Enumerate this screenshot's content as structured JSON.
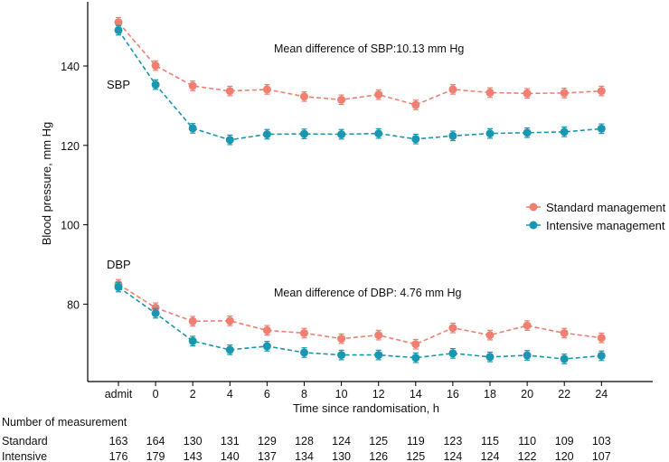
{
  "chart_data": {
    "type": "line",
    "xlabel": "Time since randomisation, h",
    "ylabel": "Blood pressure, mm Hg",
    "categories": [
      "admit",
      "0",
      "2",
      "4",
      "6",
      "8",
      "10",
      "12",
      "14",
      "16",
      "18",
      "20",
      "22",
      "24"
    ],
    "ylim": [
      60,
      155
    ],
    "yticks": [
      80,
      100,
      120,
      140
    ],
    "grid": false,
    "legend_position": "right",
    "series": [
      {
        "name": "Standard management",
        "group": "SBP",
        "color": "#F07F72",
        "values": [
          151.0,
          140.1,
          135.0,
          133.7,
          134.1,
          132.3,
          131.5,
          132.8,
          130.2,
          134.1,
          133.3,
          133.1,
          133.2,
          133.7
        ],
        "err": 1.2
      },
      {
        "name": "Intensive management",
        "group": "SBP",
        "color": "#1A97B0",
        "values": [
          149.0,
          135.3,
          124.3,
          121.4,
          122.8,
          122.9,
          122.8,
          123.0,
          121.6,
          122.4,
          123.0,
          123.2,
          123.4,
          124.2
        ],
        "err": 1.2
      },
      {
        "name": "Standard management",
        "group": "DBP",
        "color": "#F07F72",
        "values": [
          85.0,
          79.1,
          75.7,
          75.8,
          73.4,
          72.7,
          71.3,
          72.2,
          69.9,
          74.0,
          72.2,
          74.6,
          72.7,
          71.5
        ],
        "err": 1.2
      },
      {
        "name": "Intensive management",
        "group": "DBP",
        "color": "#1A97B0",
        "values": [
          84.3,
          77.7,
          70.7,
          68.5,
          69.4,
          67.8,
          67.2,
          67.2,
          66.5,
          67.6,
          66.7,
          67.1,
          66.2,
          67.0
        ],
        "err": 1.2
      }
    ],
    "legend": [
      {
        "label": "Standard management",
        "color": "#F07F72"
      },
      {
        "label": "Intensive management",
        "color": "#1A97B0"
      }
    ],
    "annotations": {
      "sbp_label": "SBP",
      "dbp_label": "DBP",
      "sbp_diff": "Mean difference of SBP:10.13 mm Hg",
      "dbp_diff": "Mean difference of DBP: 4.76 mm Hg"
    },
    "table": {
      "title": "Number of measurement",
      "rows": [
        {
          "label": "Standard",
          "values": [
            "163",
            "164",
            "130",
            "131",
            "129",
            "128",
            "124",
            "125",
            "119",
            "123",
            "115",
            "110",
            "109",
            "103"
          ]
        },
        {
          "label": "Intensive",
          "values": [
            "176",
            "179",
            "143",
            "140",
            "137",
            "134",
            "130",
            "126",
            "125",
            "124",
            "124",
            "122",
            "120",
            "107"
          ]
        }
      ]
    }
  }
}
